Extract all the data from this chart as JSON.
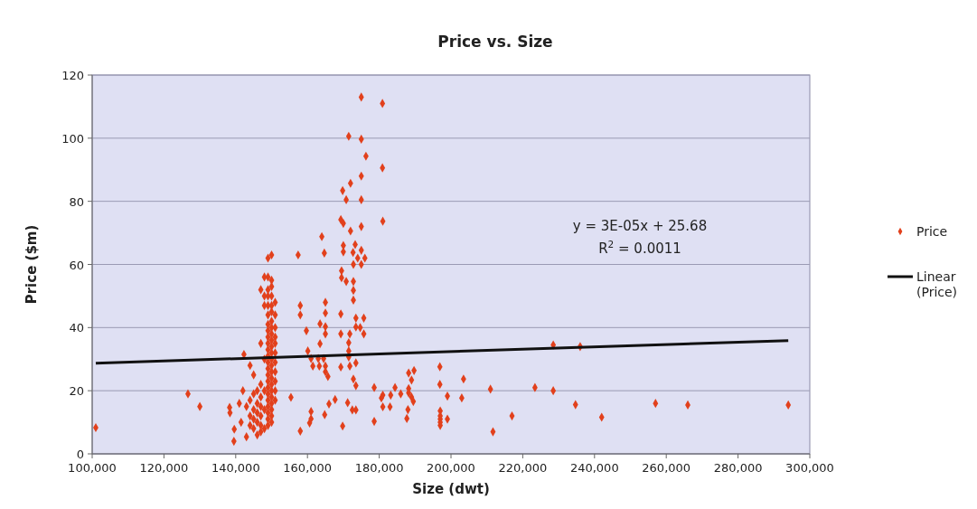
{
  "chart_data": {
    "type": "scatter",
    "title": "Price vs. Size",
    "xlabel": "Size (dwt)",
    "ylabel": "Price ($m)",
    "xlim": [
      100000,
      300000
    ],
    "xticks": [
      {
        "value": 100000,
        "label": "100,000"
      },
      {
        "value": 120000,
        "label": "120,000"
      },
      {
        "value": 140000,
        "label": "140,000"
      },
      {
        "value": 160000,
        "label": "160,000"
      },
      {
        "value": 180000,
        "label": "180,000"
      },
      {
        "value": 200000,
        "label": "200,000"
      },
      {
        "value": 220000,
        "label": "220,000"
      },
      {
        "value": 240000,
        "label": "240,000"
      },
      {
        "value": 260000,
        "label": "260,000"
      },
      {
        "value": 280000,
        "label": "280,000"
      },
      {
        "value": 300000,
        "label": "300,000"
      }
    ],
    "ylim": [
      0,
      120
    ],
    "yticks": [
      0,
      20,
      40,
      60,
      80,
      100,
      120
    ],
    "grid": "y",
    "legend": "right",
    "annotations": [
      "y = 3E-05x + 25.68",
      "R$^{2}$ = 0.0011"
    ],
    "series": [
      {
        "name": "Price",
        "color": "#e2401c",
        "marker": "diamond",
        "x": [
          101000,
          126700,
          130000,
          138300,
          138400,
          139600,
          139500,
          141000,
          141500,
          142000,
          142300,
          143000,
          143000,
          144000,
          144000,
          144000,
          144000,
          145000,
          145000,
          145000,
          145000,
          145000,
          146000,
          146000,
          146000,
          146000,
          146000,
          147000,
          147000,
          147000,
          147000,
          147000,
          147000,
          147000,
          147000,
          148000,
          148000,
          148000,
          148000,
          148000,
          148000,
          148000,
          149000,
          149000,
          149000,
          149000,
          149000,
          149000,
          149000,
          149000,
          149000,
          149000,
          149000,
          149000,
          149000,
          149000,
          149000,
          149000,
          149000,
          149000,
          149000,
          149000,
          149000,
          149000,
          149000,
          150000,
          150000,
          150000,
          150000,
          150000,
          150000,
          150000,
          150000,
          150000,
          150000,
          150000,
          150000,
          150000,
          150000,
          150000,
          150000,
          150000,
          150000,
          150000,
          150000,
          150000,
          150000,
          150000,
          151000,
          151000,
          151000,
          151000,
          151000,
          151000,
          151000,
          151000,
          151000,
          151000,
          151000,
          155400,
          157400,
          158000,
          158000,
          158000,
          159700,
          160100,
          160600,
          161000,
          161000,
          161000,
          161500,
          163000,
          163300,
          163500,
          163500,
          164000,
          164500,
          164700,
          164800,
          165000,
          165000,
          165000,
          165000,
          165000,
          165000,
          165700,
          166000,
          167700,
          169300,
          169300,
          169300,
          169300,
          169500,
          169500,
          169800,
          169800,
          170000,
          170000,
          170000,
          170800,
          170800,
          171200,
          171500,
          171500,
          171500,
          171500,
          171800,
          171800,
          172000,
          172000,
          172500,
          172700,
          172800,
          172800,
          172800,
          172800,
          172800,
          173300,
          173500,
          173500,
          173500,
          173500,
          173500,
          174000,
          174700,
          175000,
          175000,
          175000,
          175000,
          175000,
          175000,
          175000,
          175700,
          175700,
          176000,
          176300,
          178600,
          178600,
          180600,
          180900,
          180900,
          181000,
          181000,
          181000,
          183000,
          183200,
          184400,
          186000,
          187700,
          188000,
          188200,
          188200,
          188200,
          189000,
          189000,
          189500,
          189700,
          196900,
          196900,
          197000,
          197000,
          197000,
          197000,
          197000,
          199000,
          199000,
          203000,
          203500,
          211000,
          211700,
          217000,
          223400,
          228500,
          228500,
          234700,
          236000,
          242000,
          257000,
          266000,
          294000
        ],
        "values": [
          8.3,
          19,
          15,
          14.7,
          13,
          7.8,
          4,
          16,
          10,
          20,
          31.5,
          15,
          5.4,
          28,
          17,
          12,
          9,
          25,
          19,
          14,
          11,
          8,
          20,
          16,
          13,
          10,
          6,
          52,
          35,
          22,
          18,
          15,
          12,
          9,
          7,
          56,
          50,
          47,
          30,
          20,
          14,
          8,
          62,
          56,
          52,
          50,
          47,
          44,
          41,
          39,
          37,
          35,
          33,
          31,
          29,
          27,
          25,
          23,
          21,
          19,
          17,
          15,
          13,
          11,
          9,
          63,
          55,
          53,
          50,
          47,
          45,
          42,
          40,
          38,
          36,
          34,
          32,
          30,
          28,
          26,
          24,
          22,
          20,
          18,
          16,
          14,
          12,
          10,
          48,
          44,
          40,
          37,
          35,
          32,
          29,
          26,
          23,
          20,
          17,
          17.9,
          63,
          47,
          44,
          7.2,
          39,
          32.6,
          9.8,
          30.2,
          13.4,
          11.1,
          27.8,
          30.2,
          27.8,
          41.2,
          34.9,
          68.8,
          30.2,
          63.6,
          12.4,
          48,
          44.6,
          40.3,
          38,
          27.8,
          26,
          24.5,
          15.8,
          17.2,
          74.2,
          44.3,
          38,
          27.5,
          58,
          55.8,
          83.4,
          8.8,
          73,
          66,
          64,
          80.5,
          54.6,
          16.2,
          100.6,
          35.2,
          32.6,
          30.7,
          38,
          27.8,
          85.7,
          70.6,
          13.9,
          63.8,
          60,
          54.6,
          51.8,
          48.7,
          23.7,
          66.3,
          43,
          40.2,
          28.8,
          21.6,
          13.9,
          62,
          40,
          113,
          99.7,
          88,
          80.5,
          72,
          64.5,
          60,
          43,
          38,
          62,
          94.3,
          21,
          10.3,
          17.7,
          111,
          90.6,
          73.7,
          18.6,
          14.9,
          14.9,
          18.6,
          21,
          19,
          11.2,
          14,
          25.6,
          20.7,
          19.3,
          23.4,
          18,
          16.6,
          26.4,
          27.6,
          22,
          13.6,
          12,
          11,
          10,
          9,
          18.3,
          11,
          17.7,
          23.7,
          20.5,
          7,
          12,
          21,
          34.5,
          20,
          15.6,
          34,
          11.6,
          16,
          15.5,
          15.5
        ]
      },
      {
        "name": "Linear (Price)",
        "type": "line",
        "color": "#111111",
        "marker": "none",
        "x": [
          101000,
          294000
        ],
        "values": [
          28.7,
          35.9
        ]
      }
    ]
  }
}
